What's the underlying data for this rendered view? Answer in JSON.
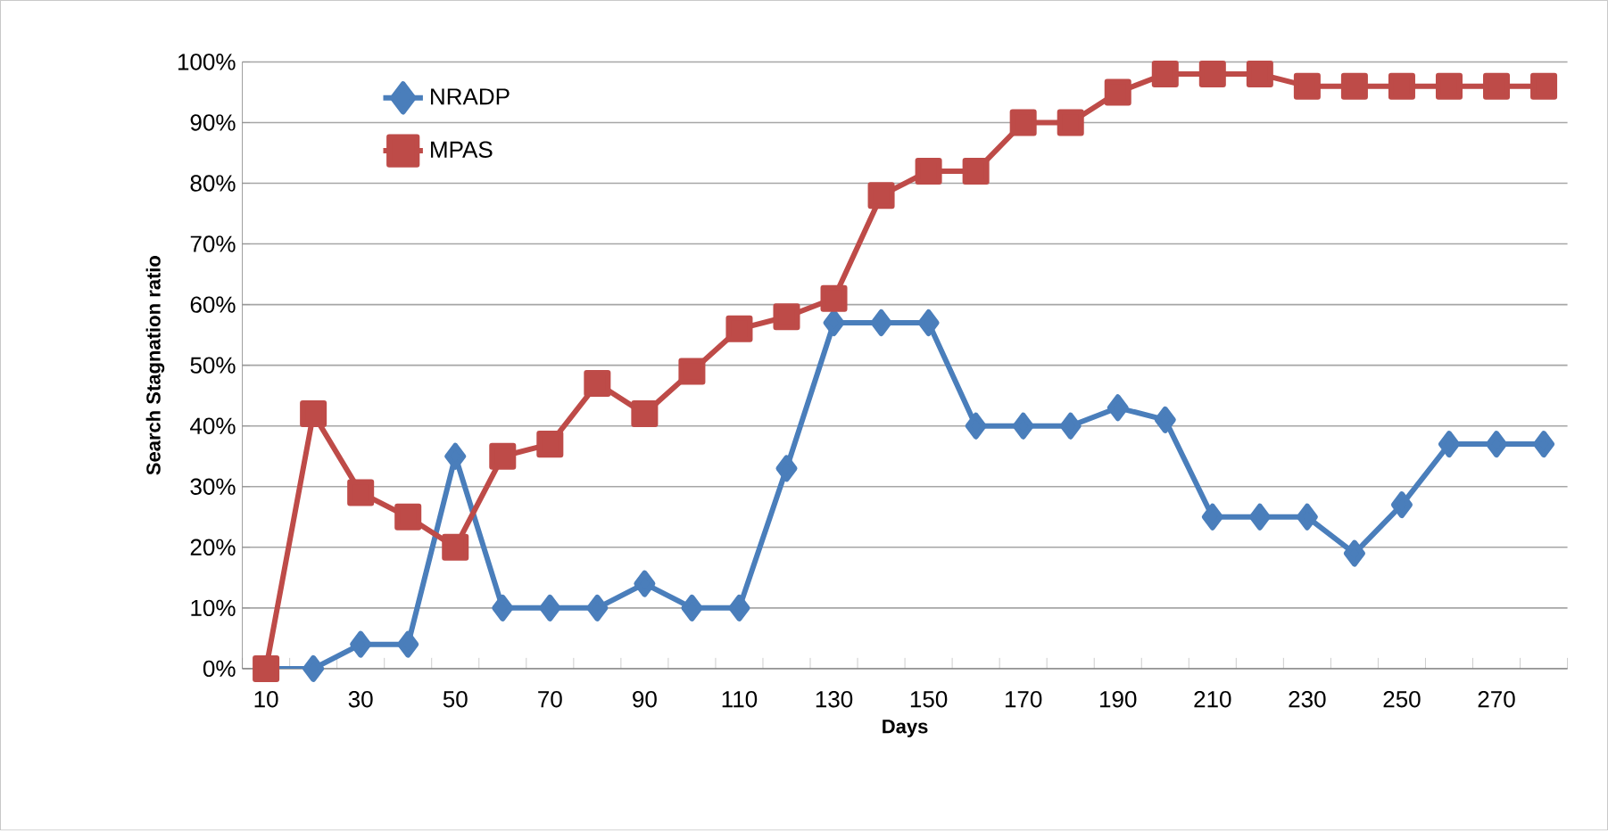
{
  "chart_data": {
    "type": "line",
    "xlabel": "Days",
    "ylabel": "Search Stagnation ratio",
    "categories": [
      "10",
      null,
      "30",
      null,
      "50",
      null,
      "70",
      null,
      "90",
      null,
      "110",
      null,
      "130",
      null,
      "150",
      null,
      "170",
      null,
      "190",
      null,
      "210",
      null,
      "230",
      null,
      "250",
      null,
      "270",
      null
    ],
    "series": [
      {
        "name": "NRADP",
        "color": "#4a7ebb",
        "marker": "diamond",
        "values": [
          0,
          0,
          4,
          4,
          35,
          10,
          10,
          10,
          14,
          10,
          10,
          33,
          57,
          57,
          57,
          40,
          40,
          40,
          43,
          41,
          25,
          25,
          25,
          19,
          27,
          37,
          37,
          37
        ]
      },
      {
        "name": "MPAS",
        "color": "#be4b48",
        "marker": "square",
        "values": [
          0,
          42,
          29,
          25,
          20,
          35,
          37,
          47,
          42,
          49,
          56,
          58,
          61,
          78,
          82,
          82,
          90,
          90,
          95,
          98,
          98,
          98,
          96,
          96,
          96,
          96,
          96,
          96
        ]
      }
    ],
    "ylim": [
      0,
      100
    ],
    "yticks": [
      {
        "value": 0,
        "label": "0%"
      },
      {
        "value": 10,
        "label": "10%"
      },
      {
        "value": 20,
        "label": "20%"
      },
      {
        "value": 30,
        "label": "30%"
      },
      {
        "value": 40,
        "label": "40%"
      },
      {
        "value": 50,
        "label": "50%"
      },
      {
        "value": 60,
        "label": "60%"
      },
      {
        "value": 70,
        "label": "70%"
      },
      {
        "value": 80,
        "label": "80%"
      },
      {
        "value": 90,
        "label": "90%"
      },
      {
        "value": 100,
        "label": "100%"
      }
    ],
    "grid": "y",
    "legend": "top left",
    "line_style": "solid"
  }
}
